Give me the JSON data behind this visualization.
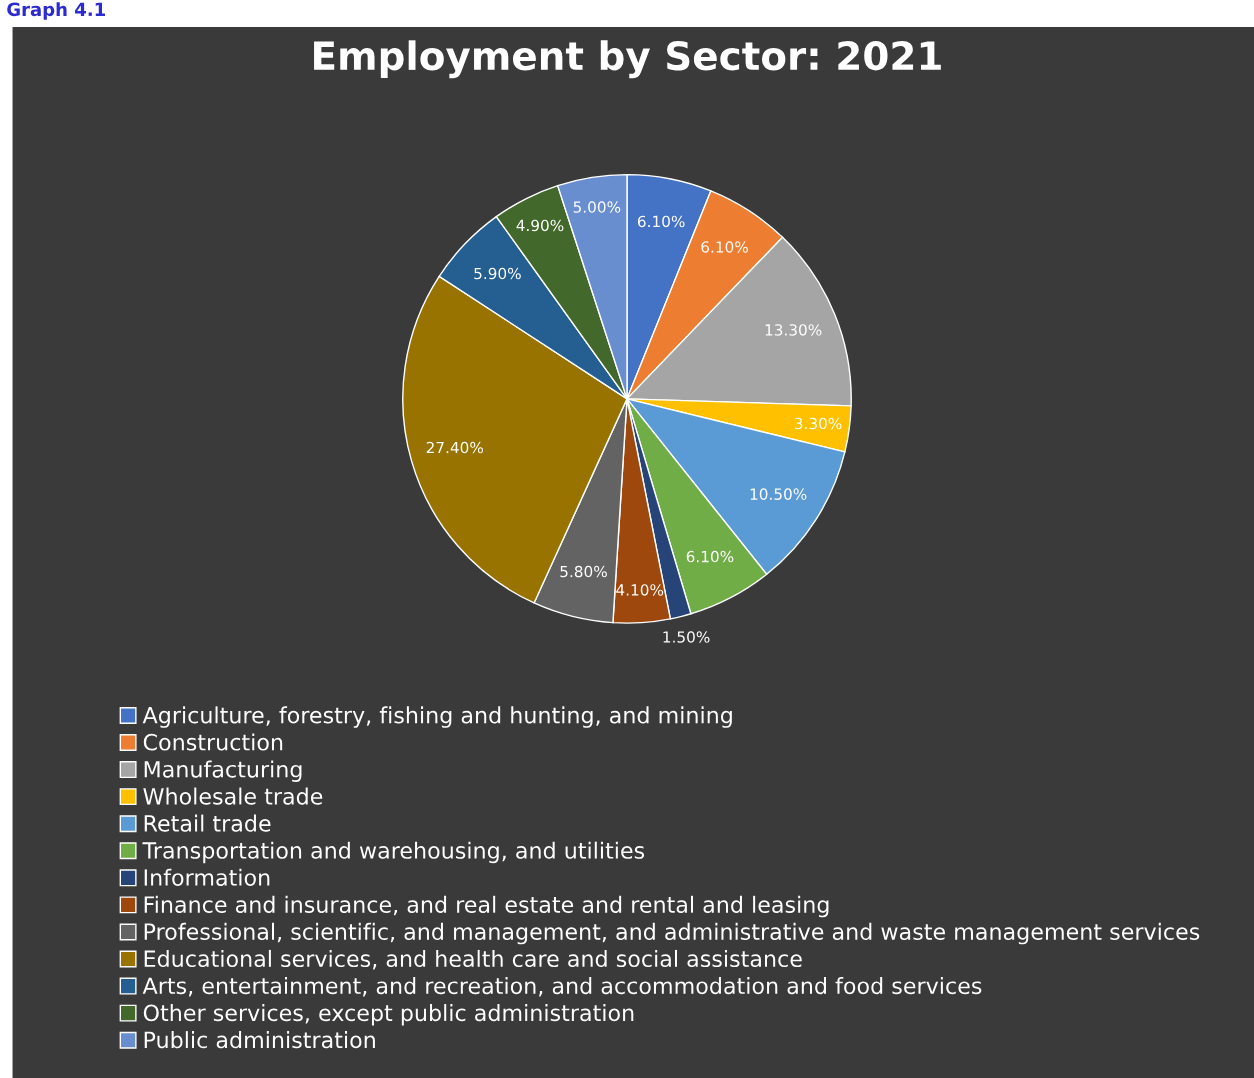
{
  "chart_data": {
    "type": "pie",
    "title": "Employment by Sector: 2021",
    "annotations": [
      "Graph 4.1"
    ],
    "categories": [
      "Agriculture, forestry, fishing and hunting, and mining",
      "Construction",
      "Manufacturing",
      "Wholesale trade",
      "Retail trade",
      "Transportation and warehousing, and utilities",
      "Information",
      "Finance and insurance, and real estate and rental and leasing",
      "Professional, scientific, and management, and administrative and waste management services",
      "Educational services, and health care and social assistance",
      "Arts, entertainment, and recreation, and accommodation and food services",
      "Other services, except public administration",
      "Public administration"
    ],
    "values": [
      6.1,
      6.1,
      13.3,
      3.3,
      10.5,
      6.1,
      1.5,
      4.1,
      5.8,
      27.4,
      5.9,
      4.9,
      5.0
    ],
    "value_labels": [
      "6.10%",
      "6.10%",
      "13.30%",
      "3.30%",
      "10.50%",
      "6.10%",
      "1.50%",
      "4.10%",
      "5.80%",
      "27.40%",
      "5.90%",
      "4.90%",
      "5.00%"
    ],
    "colors": [
      "#4472c4",
      "#ed7d31",
      "#a5a5a5",
      "#ffc000",
      "#5b9bd5",
      "#70ad47",
      "#264478",
      "#9e480e",
      "#636363",
      "#997300",
      "#255e91",
      "#43682b",
      "#698ed0"
    ],
    "legend": "bottom"
  }
}
